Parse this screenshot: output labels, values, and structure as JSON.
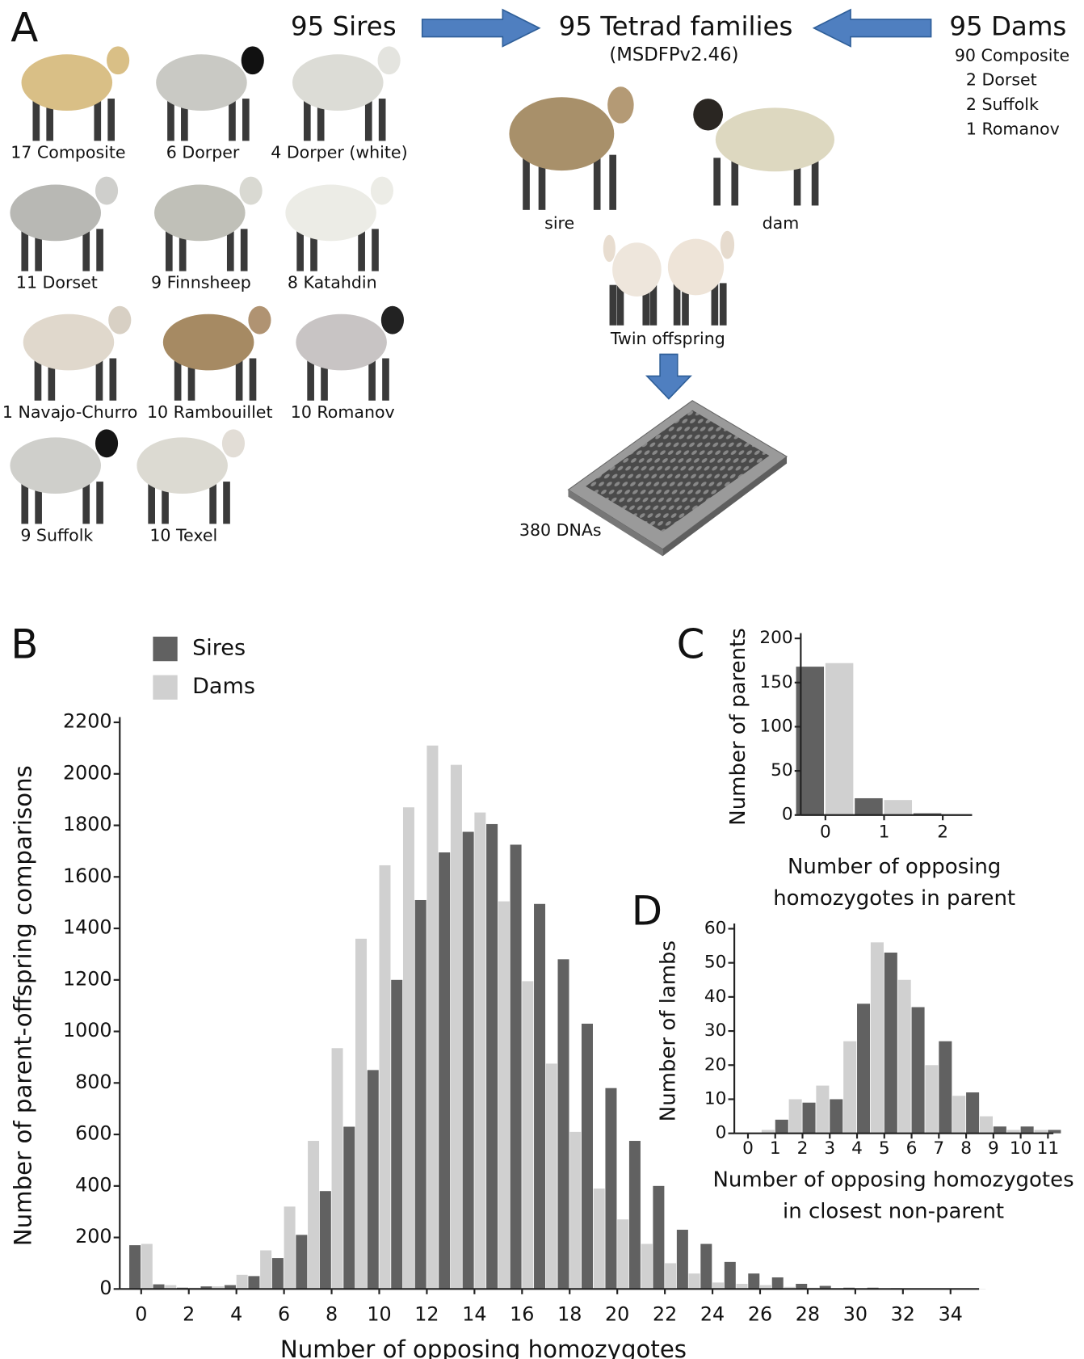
{
  "panel_a": {
    "label": "A",
    "sires_header": "95 Sires",
    "families_header": "95 Tetrad families",
    "families_sub": "(MSDFPv2.46)",
    "dams_header": "95 Dams",
    "sire_breeds": [
      "17 Composite",
      "6 Dorper",
      "4 Dorper (white)",
      "11 Dorset",
      "9 Finnsheep",
      "8 Katahdin",
      "1 Navajo-Churro",
      "10 Rambouillet",
      "10 Romanov",
      "9 Suffolk",
      "10 Texel"
    ],
    "dam_breeds": [
      "90 Composite",
      "2 Dorset",
      "2 Suffolk",
      "1 Romanov"
    ],
    "sire_caption": "sire",
    "dam_caption": "dam",
    "offspring_caption": "Twin offspring",
    "plate_caption": "380 DNAs"
  },
  "chart_data": [
    {
      "type": "bar",
      "panel": "B",
      "x_label": "Number of opposing homozygotes",
      "y_label": "Number of parent-offspring comparisons",
      "x": [
        0,
        1,
        2,
        3,
        4,
        5,
        6,
        7,
        8,
        9,
        10,
        11,
        12,
        13,
        14,
        15,
        16,
        17,
        18,
        19,
        20,
        21,
        22,
        23,
        24,
        25,
        26,
        27,
        28,
        29,
        30,
        31,
        32,
        33,
        34,
        35
      ],
      "series": [
        {
          "name": "Sires",
          "color": "#616161",
          "values": [
            170,
            18,
            5,
            10,
            15,
            50,
            120,
            210,
            380,
            630,
            850,
            1200,
            1510,
            1695,
            1775,
            1805,
            1725,
            1495,
            1280,
            1030,
            780,
            575,
            400,
            230,
            175,
            105,
            60,
            45,
            20,
            12,
            5,
            5,
            3,
            2,
            2,
            2
          ]
        },
        {
          "name": "Dams",
          "color": "#d0d0d0",
          "values": [
            175,
            15,
            5,
            10,
            55,
            150,
            320,
            575,
            935,
            1360,
            1645,
            1870,
            2110,
            2035,
            1850,
            1505,
            1195,
            875,
            610,
            390,
            270,
            175,
            100,
            60,
            25,
            20,
            15,
            8,
            5,
            3,
            2,
            2,
            1,
            1,
            1,
            1
          ]
        }
      ],
      "xlim": [
        -0.9,
        35.2
      ],
      "xticks": [
        0,
        2,
        4,
        6,
        8,
        10,
        12,
        14,
        16,
        18,
        20,
        22,
        24,
        26,
        28,
        30,
        32,
        34
      ],
      "ylim": [
        0,
        2200
      ],
      "yticks": [
        0,
        200,
        400,
        600,
        800,
        1000,
        1200,
        1400,
        1600,
        1800,
        2000,
        2200
      ],
      "legend": "upper-left"
    },
    {
      "type": "bar",
      "panel": "C",
      "x_label": [
        "Number of opposing",
        "homozygotes in parent"
      ],
      "y_label": "Number of parents",
      "x": [
        0,
        1,
        2
      ],
      "series": [
        {
          "name": "Sires",
          "color": "#616161",
          "values": [
            168,
            19,
            2
          ]
        },
        {
          "name": "Dams",
          "color": "#d0d0d0",
          "values": [
            172,
            17,
            0.5
          ]
        }
      ],
      "xlim": [
        -0.42,
        2.5
      ],
      "xticks": [
        0,
        1,
        2
      ],
      "ylim": [
        0,
        200
      ],
      "yticks": [
        0,
        50,
        100,
        150,
        200
      ]
    },
    {
      "type": "bar",
      "panel": "D",
      "x_label": [
        "Number of opposing homozygotes",
        "in closest non-parent"
      ],
      "y_label": "Number of lambs",
      "x": [
        0,
        1,
        2,
        3,
        4,
        5,
        6,
        7,
        8,
        9,
        10,
        11
      ],
      "series": [
        {
          "name": "Dams",
          "color": "#d0d0d0",
          "values": [
            0,
            1,
            10,
            14,
            27,
            56,
            45,
            20,
            11,
            5,
            1,
            1
          ]
        },
        {
          "name": "Sires",
          "color": "#616161",
          "values": [
            0,
            4,
            9,
            10,
            38,
            53,
            37,
            27,
            12,
            2,
            2,
            1
          ]
        }
      ],
      "xlim": [
        -0.5,
        11.2
      ],
      "xticks": [
        0,
        1,
        2,
        3,
        4,
        5,
        6,
        7,
        8,
        9,
        10,
        11
      ],
      "ylim": [
        0,
        60
      ],
      "yticks": [
        0,
        10,
        20,
        30,
        40,
        50,
        60
      ]
    }
  ]
}
